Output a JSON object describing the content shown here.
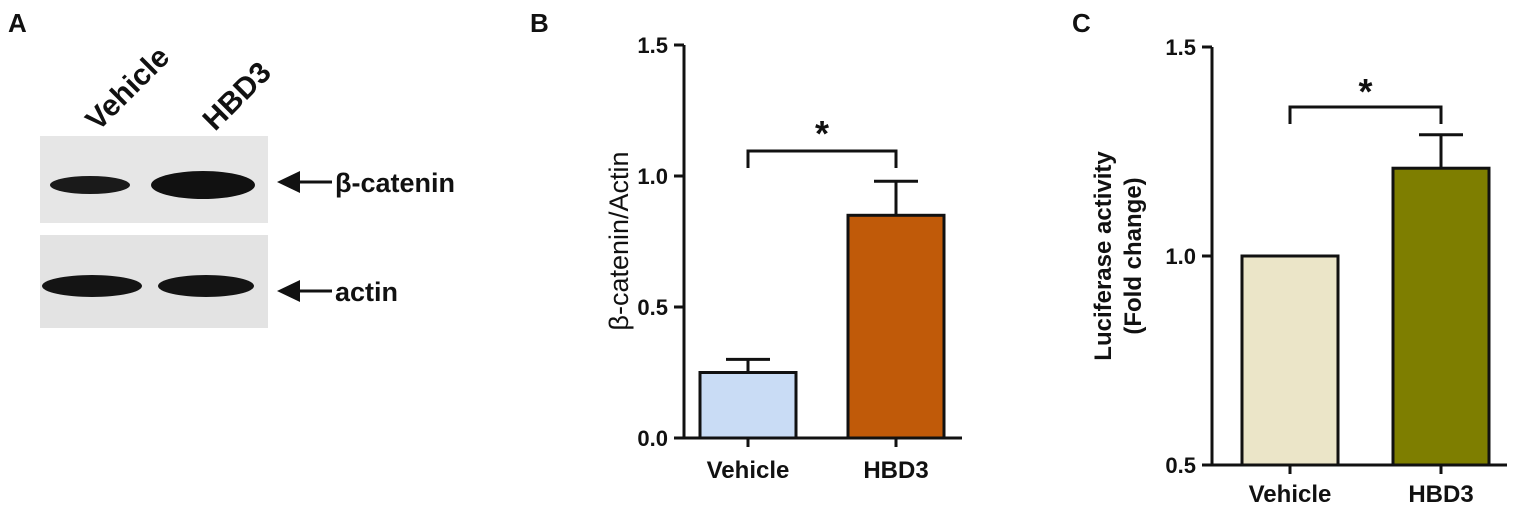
{
  "panels": {
    "A": {
      "letter": "A",
      "lanes": [
        "Vehicle",
        "HBD3"
      ],
      "bands": [
        "β-catenin",
        "actin"
      ],
      "colors": {
        "blot_bg": "#e3e3e3",
        "band": "#141414"
      }
    },
    "B": {
      "letter": "B"
    },
    "C": {
      "letter": "C"
    }
  },
  "chart_data": [
    {
      "type": "bar",
      "panel": "B",
      "categories": [
        "Vehicle",
        "HBD3"
      ],
      "values": [
        0.25,
        0.85
      ],
      "errors": [
        0.05,
        0.13
      ],
      "colors": [
        "#c9dcf5",
        "#c05a09"
      ],
      "ylabel": "β-catenin/Actin",
      "ylim": [
        0,
        1.5
      ],
      "yticks": [
        0.0,
        0.5,
        1.0,
        1.5
      ],
      "ytick_labels": [
        "0.0",
        "0.5",
        "1.0",
        "1.5"
      ],
      "significance": {
        "between": [
          0,
          1
        ],
        "label": "*"
      },
      "grid": false
    },
    {
      "type": "bar",
      "panel": "C",
      "categories": [
        "Vehicle",
        "HBD3"
      ],
      "values": [
        1.0,
        1.21
      ],
      "errors": [
        0,
        0.08
      ],
      "colors": [
        "#ebe5c8",
        "#7e7e00"
      ],
      "ylabel": "Luciferase activity (Fold change)",
      "ylabel_lines": [
        "Luciferase activity",
        "(Fold change)"
      ],
      "ylim": [
        0.5,
        1.5
      ],
      "yticks": [
        0.5,
        1.0,
        1.5
      ],
      "ytick_labels": [
        "0.5",
        "1.0",
        "1.5"
      ],
      "significance": {
        "between": [
          0,
          1
        ],
        "label": "*"
      },
      "grid": false
    }
  ]
}
